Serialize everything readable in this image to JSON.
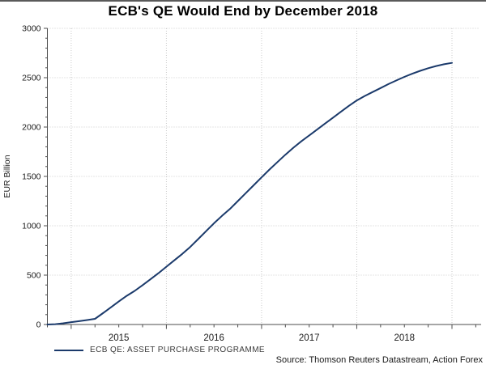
{
  "chart_data": {
    "type": "line",
    "title": "ECB's QE Would End by December 2018",
    "ylabel": "EUR Billion",
    "ylim": [
      0,
      3000
    ],
    "ytick_step_major": 500,
    "ytick_step_minor": 100,
    "ytick_labels": [
      "0",
      "500",
      "1000",
      "1500",
      "2000",
      "2500",
      "3000"
    ],
    "x_range": [
      "2014-10",
      "2018-12"
    ],
    "x_year_labels": [
      "2015",
      "2016",
      "2017",
      "2018"
    ],
    "grid": "dotted",
    "legend_position": "bottom-left",
    "source": "Source: Thomson Reuters Datastream, Action Forex",
    "series": [
      {
        "name": "ECB QE: ASSET PURCHASE PROGRAMME",
        "color": "#1b3a6b",
        "months": [
          "2014-10",
          "2014-11",
          "2014-12",
          "2015-01",
          "2015-02",
          "2015-03",
          "2015-04",
          "2015-05",
          "2015-06",
          "2015-07",
          "2015-08",
          "2015-09",
          "2015-10",
          "2015-11",
          "2015-12",
          "2016-01",
          "2016-02",
          "2016-03",
          "2016-04",
          "2016-05",
          "2016-06",
          "2016-07",
          "2016-08",
          "2016-09",
          "2016-10",
          "2016-11",
          "2016-12",
          "2017-01",
          "2017-02",
          "2017-03",
          "2017-04",
          "2017-05",
          "2017-06",
          "2017-07",
          "2017-08",
          "2017-09",
          "2017-10",
          "2017-11",
          "2017-12",
          "2018-01",
          "2018-02",
          "2018-03",
          "2018-04",
          "2018-05",
          "2018-06",
          "2018-07",
          "2018-08",
          "2018-09",
          "2018-10",
          "2018-11",
          "2018-12"
        ],
        "values": [
          3,
          12,
          24,
          34,
          45,
          57,
          115,
          174,
          233,
          290,
          340,
          398,
          458,
          520,
          585,
          650,
          715,
          785,
          865,
          945,
          1025,
          1100,
          1170,
          1250,
          1330,
          1410,
          1490,
          1570,
          1645,
          1720,
          1790,
          1855,
          1915,
          1975,
          2035,
          2095,
          2155,
          2215,
          2270,
          2315,
          2355,
          2395,
          2435,
          2472,
          2508,
          2540,
          2570,
          2596,
          2618,
          2636,
          2650
        ]
      }
    ]
  },
  "colors": {
    "line": "#1b3a6b",
    "grid": "#c9c9c9",
    "axis": "#4d4d4d",
    "tick_text": "#1a1a1a",
    "legend_text": "#3a3a3a",
    "top_rule": "#5a5a5a"
  }
}
